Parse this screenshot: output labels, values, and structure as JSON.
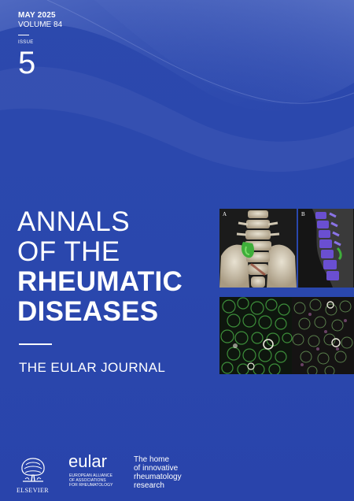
{
  "header": {
    "month_year": "MAY 2025",
    "volume": "VOLUME 84",
    "issue_label": "ISSUE",
    "issue_number": "5"
  },
  "title": {
    "line1": "ANNALS",
    "line2": "OF THE",
    "line3": "RHEUMATIC",
    "line4": "DISEASES"
  },
  "subtitle": "THE EULAR JOURNAL",
  "images": {
    "panel_a_label": "A",
    "panel_b_label": "B"
  },
  "footer": {
    "publisher": "ELSEVIER",
    "eular_wordmark": "eular",
    "eular_description_line1": "EUROPEAN ALLIANCE",
    "eular_description_line2": "OF ASSOCIATIONS",
    "eular_description_line3": "FOR RHEUMATOLOGY",
    "tagline_line1": "The home",
    "tagline_line2": "of innovative",
    "tagline_line3": "rheumatology",
    "tagline_line4": "research"
  },
  "colors": {
    "background": "#2b47ad",
    "text": "#ffffff",
    "wave": "#5b74c5"
  }
}
